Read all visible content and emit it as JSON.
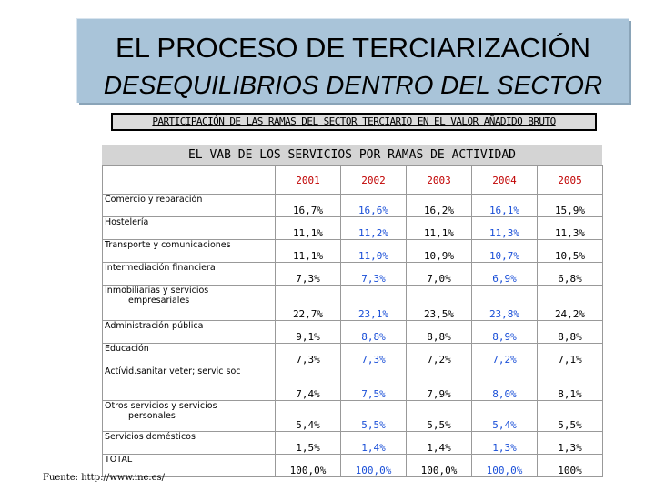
{
  "title": {
    "line1": "EL PROCESO DE TERCIARIZACIÓN",
    "line2": "DESEQUILIBRIOS DENTRO DEL SECTOR"
  },
  "subtitle": "PARTICIPACIÓN DE LAS RAMAS DEL SECTOR TERCIARIO EN EL VALOR AÑADIDO BRUTO",
  "table": {
    "header": "EL VAB DE LOS SERVICIOS POR RAMAS DE ACTIVIDAD",
    "years": [
      "2001",
      "2002",
      "2003",
      "2004",
      "2005"
    ],
    "rows": [
      {
        "label": [
          "Comercio y reparación"
        ],
        "values": [
          "16,7%",
          "16,6%",
          "16,2%",
          "16,1%",
          "15,9%"
        ]
      },
      {
        "label": [
          "Hostelería"
        ],
        "values": [
          "11,1%",
          "11,2%",
          "11,1%",
          "11,3%",
          "11,3%"
        ]
      },
      {
        "label": [
          "Transporte y comunicaciones"
        ],
        "values": [
          "11,1%",
          "11,0%",
          "10,9%",
          "10,7%",
          "10,5%"
        ]
      },
      {
        "label": [
          "Intermediación financiera"
        ],
        "values": [
          "7,3%",
          "7,3%",
          "7,0%",
          "6,9%",
          "6,8%"
        ]
      },
      {
        "label": [
          "Inmobiliarias y servicios",
          "empresariales"
        ],
        "values": [
          "22,7%",
          "23,1%",
          "23,5%",
          "23,8%",
          "24,2%"
        ]
      },
      {
        "label": [
          "Administración pública"
        ],
        "values": [
          "9,1%",
          "8,8%",
          "8,8%",
          "8,9%",
          "8,8%"
        ]
      },
      {
        "label": [
          "Educación"
        ],
        "values": [
          "7,3%",
          "7,3%",
          "7,2%",
          "7,2%",
          "7,1%"
        ]
      },
      {
        "label": [
          "Actívid.sanitar veter; servic soc"
        ],
        "values": [
          "7,4%",
          "7,5%",
          "7,9%",
          "8,0%",
          "8,1%"
        ]
      },
      {
        "label": [
          "Otros servicios y servicios",
          "personales"
        ],
        "values": [
          "5,4%",
          "5,5%",
          "5,5%",
          "5,4%",
          "5,5%"
        ]
      },
      {
        "label": [
          "Servicios domésticos"
        ],
        "values": [
          "1,5%",
          "1,4%",
          "1,4%",
          "1,3%",
          "1,3%"
        ]
      },
      {
        "label": [
          "TOTAL"
        ],
        "values": [
          "100,0%",
          "100,0%",
          "100,0%",
          "100,0%",
          "100%"
        ]
      }
    ]
  },
  "source": "Fuente: http://www.ine.es/",
  "colors": {
    "title_bg": "#a9c4d9",
    "year_text": "#c00000",
    "blue_values": "#1a4fd8"
  }
}
